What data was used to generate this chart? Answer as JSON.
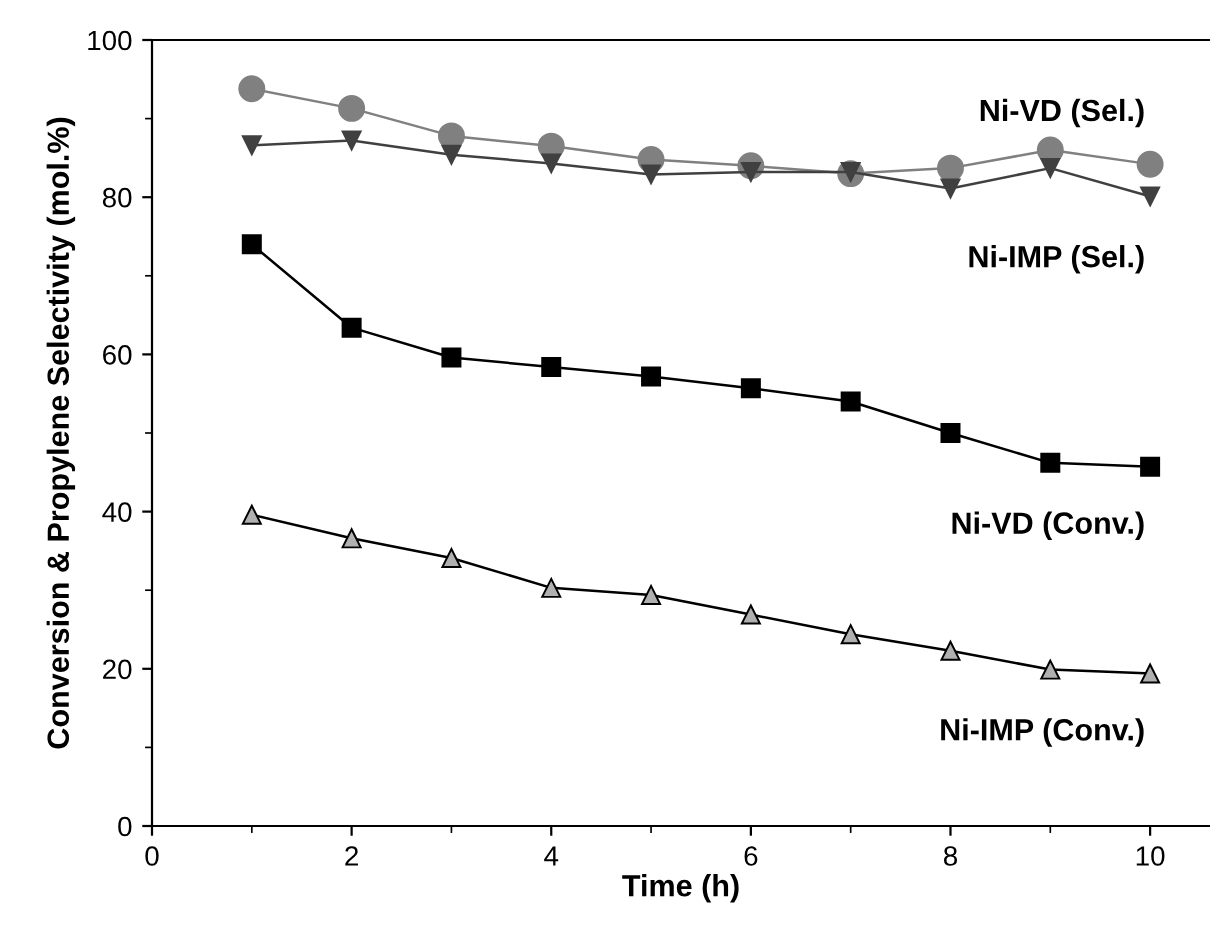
{
  "chart_data": {
    "type": "line",
    "xlabel": "Time (h)",
    "ylabel": "Conversion & Propylene Selectivity (mol.%)",
    "x": [
      1,
      2,
      3,
      4,
      5,
      6,
      7,
      8,
      9,
      10
    ],
    "xlim": [
      0,
      10.6
    ],
    "xticks": [
      0,
      2,
      4,
      6,
      8,
      10
    ],
    "ylim": [
      0,
      100
    ],
    "yticks": [
      0,
      20,
      40,
      60,
      80,
      100
    ],
    "grid": false,
    "legend": false,
    "line_style": "solid",
    "series": [
      {
        "name": "Ni-VD (Sel.)",
        "color": "#808080",
        "marker": "circle",
        "values": [
          93.8,
          91.3,
          87.8,
          86.5,
          84.8,
          84.0,
          83.0,
          83.7,
          86.0,
          84.2
        ]
      },
      {
        "name": "Ni-IMP (Sel.)",
        "color": "#404040",
        "marker": "triangle_down",
        "values": [
          86.6,
          87.2,
          85.4,
          84.3,
          82.9,
          83.2,
          83.2,
          81.1,
          83.7,
          80.1
        ]
      },
      {
        "name": "Ni-VD (Conv.)",
        "color": "#000000",
        "marker": "square",
        "values": [
          74.0,
          63.4,
          59.6,
          58.4,
          57.2,
          55.7,
          54.0,
          50.0,
          46.2,
          45.7
        ]
      },
      {
        "name": "Ni-IMP (Conv.)",
        "color": "#b0b0b0",
        "marker": "triangle",
        "values": [
          39.6,
          36.6,
          34.1,
          30.3,
          29.4,
          26.9,
          24.4,
          22.3,
          19.9,
          19.4
        ]
      }
    ]
  }
}
